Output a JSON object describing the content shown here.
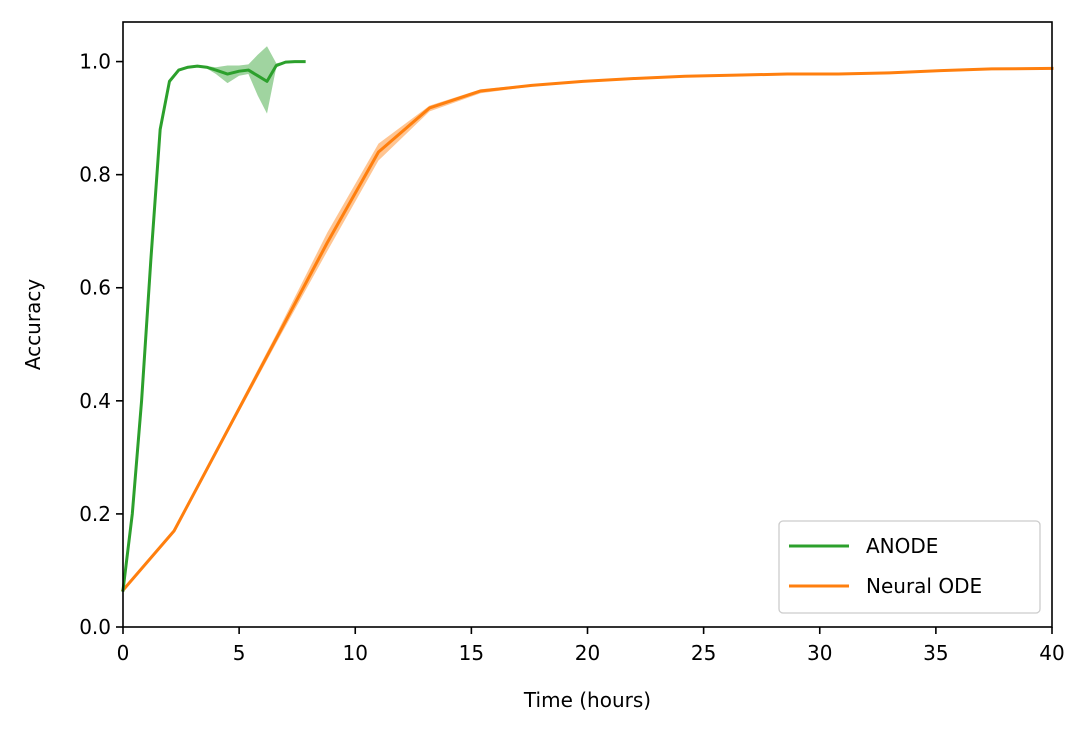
{
  "chart_data": {
    "type": "line",
    "title": "",
    "xlabel": "Time (hours)",
    "ylabel": "Accuracy",
    "xlim": [
      0,
      40
    ],
    "ylim": [
      0,
      1.07
    ],
    "xticks": [
      0,
      5,
      10,
      15,
      20,
      25,
      30,
      35,
      40
    ],
    "yticks": [
      0.0,
      0.2,
      0.4,
      0.6,
      0.8,
      1.0
    ],
    "xtick_labels": [
      "0",
      "5",
      "10",
      "15",
      "20",
      "25",
      "30",
      "35",
      "40"
    ],
    "ytick_labels": [
      "0.0",
      "0.2",
      "0.4",
      "0.6",
      "0.8",
      "1.0"
    ],
    "grid": false,
    "legend_position": "bottom-right",
    "series": [
      {
        "name": "ANODE",
        "color": "#2ca02c",
        "band_color": "#2ca02c",
        "x": [
          0,
          0.4,
          0.8,
          1.2,
          1.6,
          2.0,
          2.4,
          2.8,
          3.2,
          3.6,
          4.0,
          4.5,
          5.0,
          5.4,
          5.8,
          6.2,
          6.6,
          7.0,
          7.4,
          7.8
        ],
        "y": [
          0.065,
          0.2,
          0.4,
          0.65,
          0.88,
          0.965,
          0.985,
          0.99,
          0.992,
          0.99,
          0.985,
          0.978,
          0.983,
          0.985,
          0.975,
          0.965,
          0.993,
          0.999,
          1.0,
          1.0
        ],
        "lower": [
          0.065,
          0.2,
          0.4,
          0.65,
          0.88,
          0.965,
          0.985,
          0.99,
          0.992,
          0.988,
          0.978,
          0.962,
          0.975,
          0.978,
          0.94,
          0.908,
          0.99,
          0.998,
          1.0,
          1.0
        ],
        "upper": [
          0.065,
          0.2,
          0.4,
          0.65,
          0.88,
          0.965,
          0.985,
          0.99,
          0.992,
          0.992,
          0.99,
          0.993,
          0.993,
          0.995,
          1.012,
          1.027,
          0.997,
          1.0,
          1.0,
          1.0
        ]
      },
      {
        "name": "Neural ODE",
        "color": "#ff7f0e",
        "band_color": "#ff7f0e",
        "x": [
          0,
          2.2,
          4.4,
          6.6,
          8.8,
          11.0,
          13.2,
          15.4,
          17.6,
          19.8,
          22.0,
          24.2,
          26.4,
          28.6,
          30.8,
          33.0,
          35.2,
          37.4,
          40.0
        ],
        "y": [
          0.065,
          0.17,
          0.34,
          0.51,
          0.68,
          0.84,
          0.918,
          0.948,
          0.958,
          0.965,
          0.97,
          0.974,
          0.976,
          0.978,
          0.978,
          0.98,
          0.984,
          0.987,
          0.988
        ],
        "lower": [
          0.063,
          0.168,
          0.335,
          0.502,
          0.665,
          0.825,
          0.912,
          0.944,
          0.956,
          0.963,
          0.968,
          0.972,
          0.974,
          0.976,
          0.976,
          0.978,
          0.982,
          0.985,
          0.986
        ],
        "upper": [
          0.067,
          0.172,
          0.345,
          0.518,
          0.698,
          0.855,
          0.922,
          0.951,
          0.96,
          0.967,
          0.972,
          0.976,
          0.978,
          0.98,
          0.98,
          0.982,
          0.986,
          0.989,
          0.99
        ]
      }
    ]
  }
}
